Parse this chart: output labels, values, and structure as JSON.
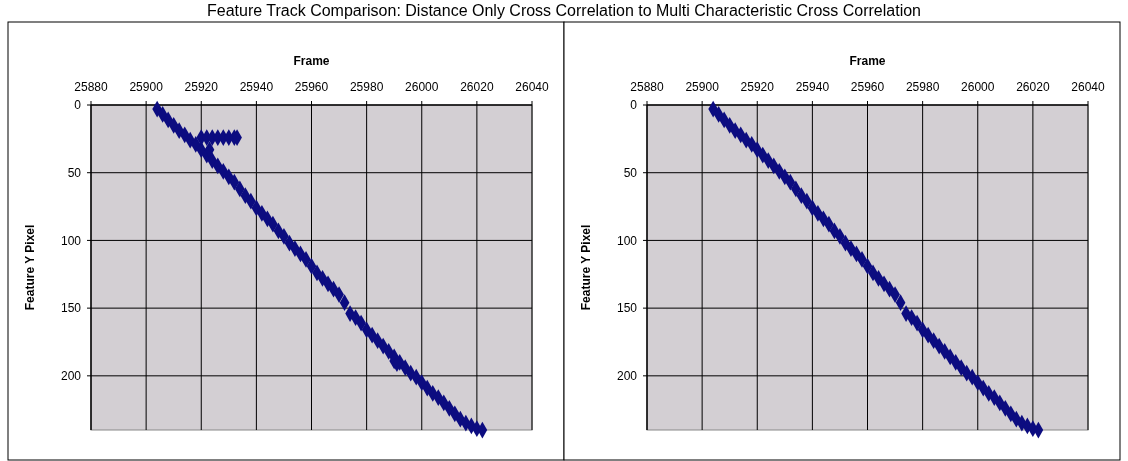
{
  "chart_data": [
    {
      "type": "scatter",
      "title": "Feature Track Comparison: Distance Only Cross Correlation to Multi Characteristic Cross Correlation",
      "xlabel": "Frame",
      "ylabel": "Feature Y Pixel",
      "xlim": [
        25880,
        26040
      ],
      "xticks": [
        25880,
        25900,
        25920,
        25940,
        25960,
        25980,
        26000,
        26020,
        26040
      ],
      "ylim": [
        240,
        0
      ],
      "yticks": [
        0,
        50,
        100,
        150,
        200
      ],
      "grid": true,
      "marker": "diamond",
      "series": [
        {
          "color": "#0c0c80",
          "x": [
            25904,
            25906,
            25908,
            25910,
            25912,
            25914,
            25916,
            25918,
            25920,
            25922,
            25924,
            25926,
            25928,
            25930,
            25932,
            25934,
            25936,
            25938,
            25940,
            25942,
            25944,
            25946,
            25948,
            25950,
            25952,
            25954,
            25956,
            25958,
            25960,
            25962,
            25964,
            25966,
            25968,
            25970,
            25972,
            25974,
            25976,
            25978,
            25980,
            25982,
            25984,
            25986,
            25988,
            25990,
            25992,
            25994,
            25996,
            25998,
            26000,
            26002,
            26004,
            26006,
            26008,
            26010,
            26012,
            26014,
            26016,
            26018,
            26020,
            26022,
            25920,
            25922,
            25924,
            25926,
            25928,
            25930,
            25932,
            25933,
            25923,
            25990,
            25991
          ],
          "values": [
            3,
            7,
            11,
            15,
            19,
            22,
            26,
            29,
            33,
            37,
            41,
            45,
            49,
            53,
            57,
            62,
            67,
            71,
            76,
            80,
            84,
            88,
            93,
            97,
            102,
            106,
            110,
            114,
            119,
            124,
            128,
            132,
            136,
            140,
            146,
            154,
            157,
            161,
            166,
            170,
            174,
            178,
            182,
            186,
            190,
            194,
            198,
            201,
            205,
            209,
            213,
            216,
            220,
            224,
            228,
            232,
            235,
            237,
            239,
            240,
            24,
            24,
            24,
            24,
            24,
            24,
            24,
            24,
            33,
            189,
            191
          ]
        }
      ]
    },
    {
      "type": "scatter",
      "xlabel": "Frame",
      "ylabel": "Feature Y Pixel",
      "xlim": [
        25880,
        26040
      ],
      "xticks": [
        25880,
        25900,
        25920,
        25940,
        25960,
        25980,
        26000,
        26020,
        26040
      ],
      "ylim": [
        240,
        0
      ],
      "yticks": [
        0,
        50,
        100,
        150,
        200
      ],
      "grid": true,
      "marker": "diamond",
      "series": [
        {
          "color": "#0c0c80",
          "x": [
            25904,
            25906,
            25908,
            25910,
            25912,
            25914,
            25916,
            25918,
            25920,
            25922,
            25924,
            25926,
            25928,
            25930,
            25932,
            25934,
            25936,
            25938,
            25940,
            25942,
            25944,
            25946,
            25948,
            25950,
            25952,
            25954,
            25956,
            25958,
            25960,
            25962,
            25964,
            25966,
            25968,
            25970,
            25972,
            25974,
            25976,
            25978,
            25980,
            25982,
            25984,
            25986,
            25988,
            25990,
            25992,
            25994,
            25996,
            25998,
            26000,
            26002,
            26004,
            26006,
            26008,
            26010,
            26012,
            26014,
            26016,
            26018,
            26020,
            26022
          ],
          "values": [
            3,
            7,
            11,
            15,
            19,
            22,
            26,
            29,
            33,
            37,
            41,
            45,
            49,
            53,
            57,
            62,
            67,
            71,
            76,
            80,
            84,
            88,
            93,
            97,
            102,
            106,
            110,
            114,
            119,
            124,
            128,
            132,
            136,
            140,
            146,
            154,
            157,
            161,
            166,
            170,
            174,
            178,
            182,
            186,
            190,
            194,
            198,
            201,
            205,
            209,
            213,
            216,
            220,
            224,
            228,
            232,
            235,
            237,
            239,
            240
          ]
        }
      ]
    }
  ]
}
